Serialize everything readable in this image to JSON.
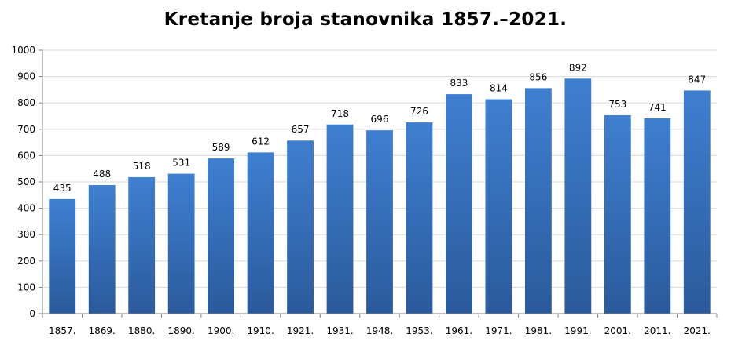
{
  "chart_data": {
    "type": "bar",
    "title": "Kretanje broja stanovnika 1857.–2021.",
    "xlabel": "",
    "ylabel": "",
    "categories": [
      "1857.",
      "1869.",
      "1880.",
      "1890.",
      "1900.",
      "1910.",
      "1921.",
      "1931.",
      "1948.",
      "1953.",
      "1961.",
      "1971.",
      "1981.",
      "1991.",
      "2001.",
      "2011.",
      "2021."
    ],
    "values": [
      435,
      488,
      518,
      531,
      589,
      612,
      657,
      718,
      696,
      726,
      833,
      814,
      856,
      892,
      753,
      741,
      847
    ],
    "ylim": [
      0,
      1000
    ],
    "yticks": [
      0,
      100,
      200,
      300,
      400,
      500,
      600,
      700,
      800,
      900,
      1000
    ],
    "grid": true,
    "legend": "none",
    "data_labels": true,
    "colors": {
      "bar_top": "#3f7fd0",
      "bar_bottom": "#2b5a9c",
      "grid": "#d9d9d9",
      "axis": "#7f7f7f",
      "text": "#000000"
    }
  }
}
